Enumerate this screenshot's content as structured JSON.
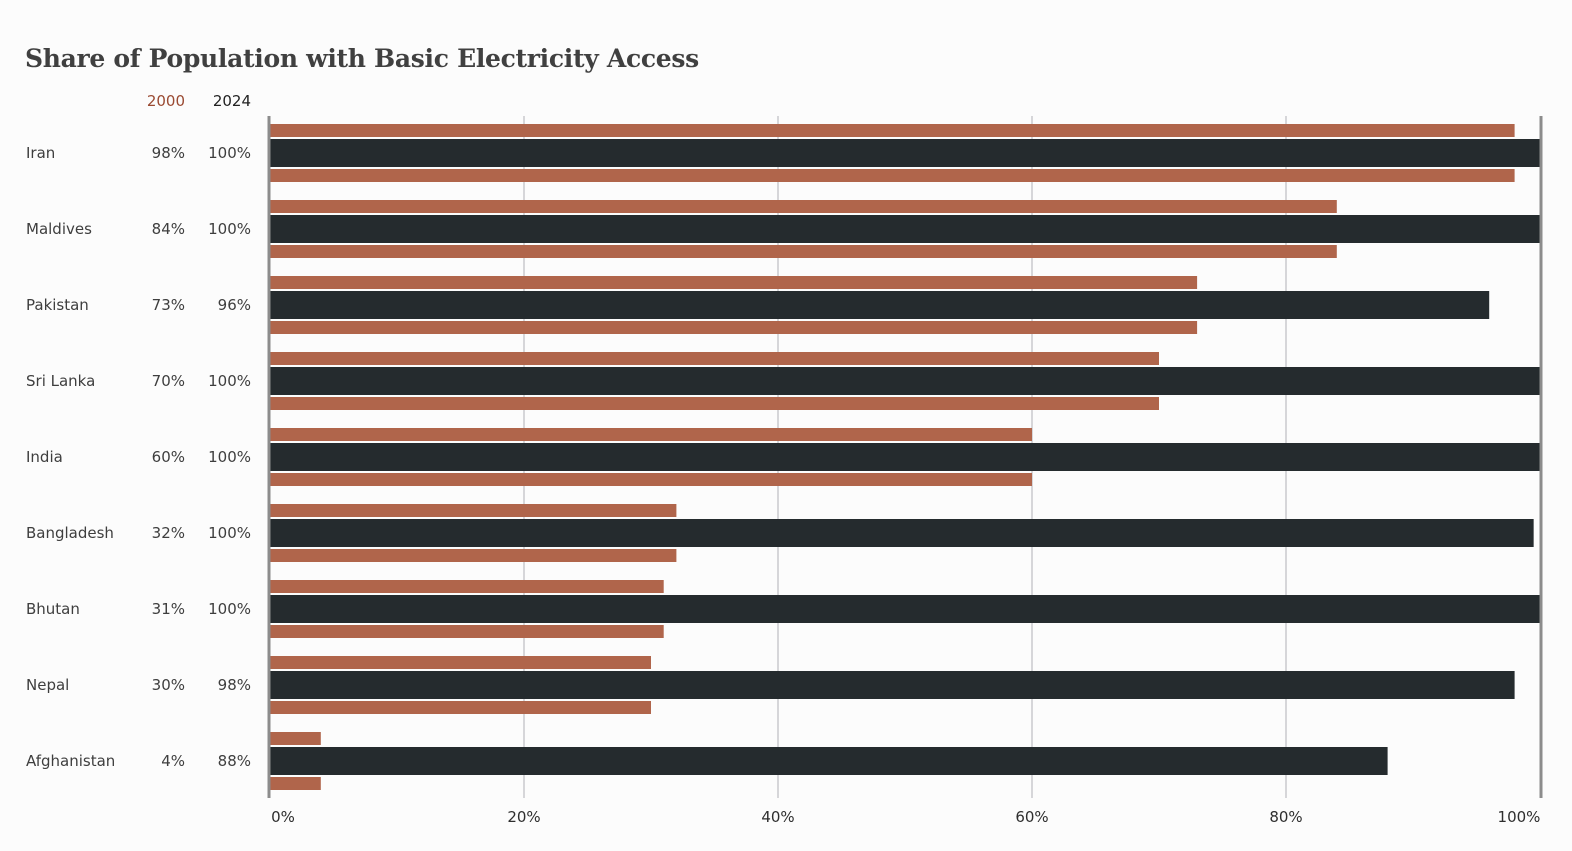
{
  "title": "Share of Population with Basic Electricity Access",
  "legend": {
    "y2000": "2000",
    "y2024": "2024"
  },
  "colors": {
    "series_2000": "#b0654b",
    "series_2024": "#252b2e",
    "grid": "#d6d6d9",
    "axis": "#8c8c8c",
    "header_2000": "#9a4a32",
    "header_2024": "#222222"
  },
  "chart_data": {
    "type": "bar",
    "orientation": "horizontal",
    "categories": [
      "Iran",
      "Maldives",
      "Pakistan",
      "Sri Lanka",
      "India",
      "Bangladesh",
      "Bhutan",
      "Nepal",
      "Afghanistan"
    ],
    "series": [
      {
        "name": "2000",
        "values": [
          98,
          84,
          73,
          70,
          60,
          32,
          31,
          30,
          4
        ]
      },
      {
        "name": "2024",
        "values": [
          100,
          100,
          96,
          100,
          100,
          99.5,
          100,
          98,
          88
        ]
      }
    ],
    "value_labels_2000": [
      "98%",
      "84%",
      "73%",
      "70%",
      "60%",
      "32%",
      "31%",
      "30%",
      "4%"
    ],
    "value_labels_2024": [
      "100%",
      "100%",
      "96%",
      "100%",
      "100%",
      "100%",
      "100%",
      "98%",
      "88%"
    ],
    "x_ticks": [
      "0%",
      "20%",
      "40%",
      "60%",
      "80%",
      "100%"
    ],
    "x_tick_values": [
      0,
      20,
      40,
      60,
      80,
      100
    ],
    "xlim": [
      0,
      100
    ],
    "grid": true
  }
}
